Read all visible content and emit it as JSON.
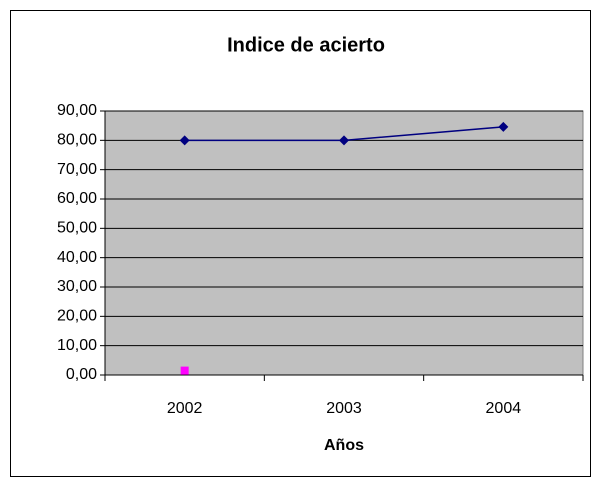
{
  "chart_data": {
    "type": "line",
    "title": "Indice de acierto",
    "x_label": "Años",
    "categories": [
      "2002",
      "2003",
      "2004"
    ],
    "series": [
      {
        "color": "#000080",
        "marker": "diamond",
        "values": [
          80,
          80,
          84.6
        ]
      },
      {
        "color": "#ff00ff",
        "marker": "square",
        "values": [
          1.5,
          null,
          null
        ]
      }
    ],
    "ylim": [
      0,
      90
    ],
    "yticks": [
      {
        "value": 0,
        "label": "0,00"
      },
      {
        "value": 10,
        "label": "10,00"
      },
      {
        "value": 20,
        "label": "20,00"
      },
      {
        "value": 30,
        "label": "30,00"
      },
      {
        "value": 40,
        "label": "40,00"
      },
      {
        "value": 50,
        "label": "50,00"
      },
      {
        "value": 60,
        "label": "60,00"
      },
      {
        "value": 70,
        "label": "70,00"
      },
      {
        "value": 80,
        "label": "80,00"
      },
      {
        "value": 90,
        "label": "90,00"
      }
    ],
    "grid": true
  }
}
